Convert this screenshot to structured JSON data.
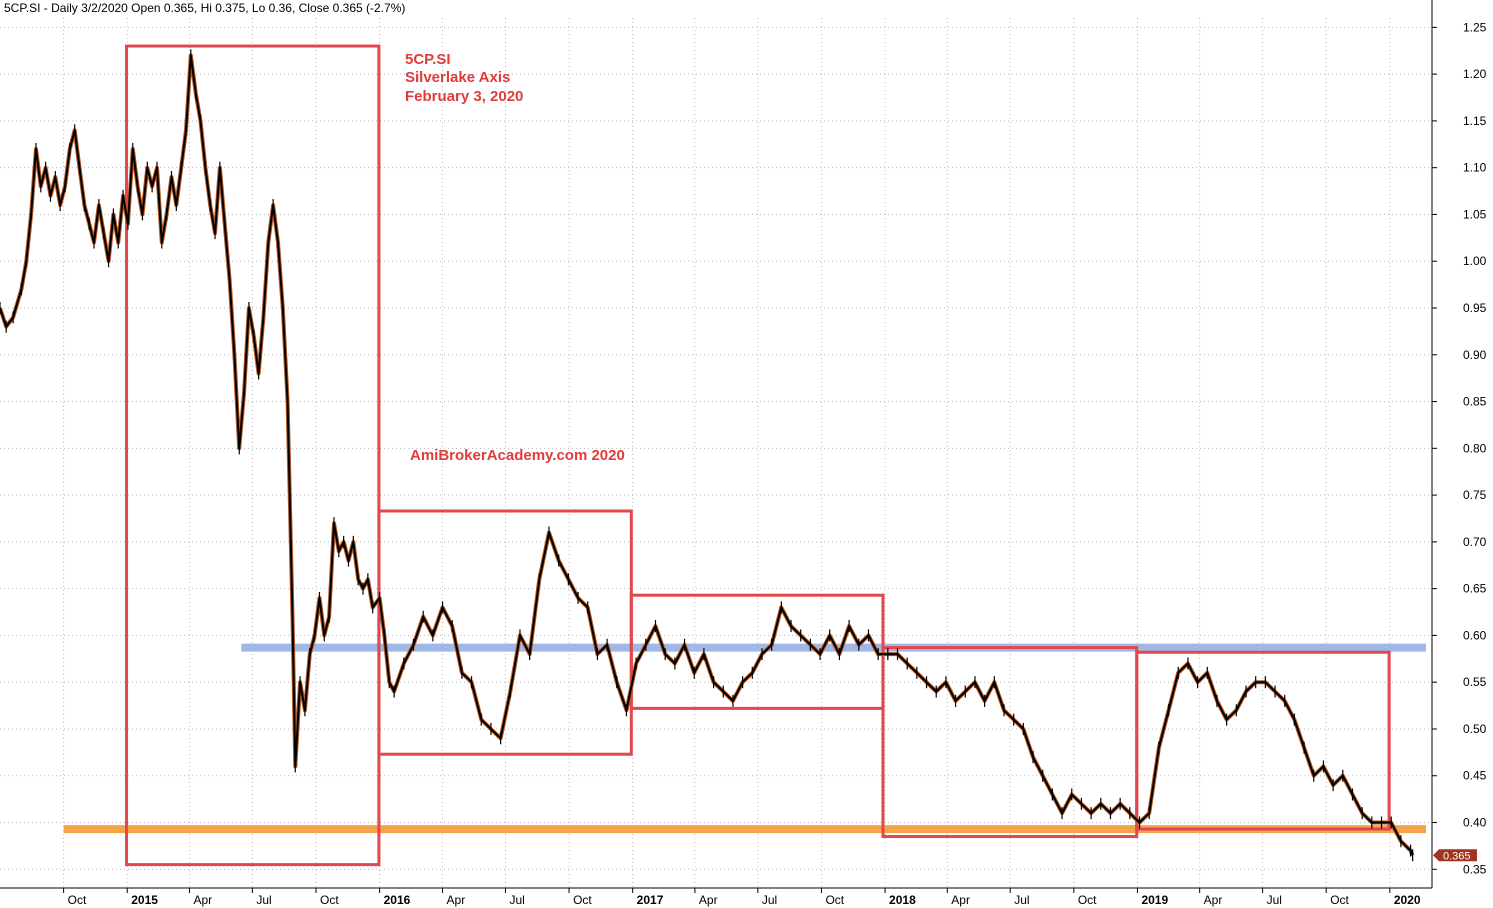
{
  "header": {
    "symbol": "5CP.SI",
    "period": "Daily",
    "date": "3/2/2020",
    "info_text": "5CP.SI - Daily 3/2/2020 Open 0.365, Hi 0.375, Lo 0.36, Close 0.365 (-2.7%)"
  },
  "annotations": {
    "ticker": "5CP.SI",
    "company": "Silverlake Axis",
    "date": "February 3, 2020",
    "watermark": "AmiBrokerAcademy.com  2020"
  },
  "colors": {
    "background": "#ffffff",
    "grid": "#b8b8b8",
    "price_line": "#000000",
    "candle_accent": "#b5541e",
    "box": "#e2474c",
    "box_dark": "#c0204a",
    "resistance": "#9fb8e6",
    "support": "#f5a347",
    "last_badge": "#a0341e",
    "text": "#000000",
    "annotation_text": "#e03c3c"
  },
  "chart_data": {
    "type": "line",
    "title": "",
    "xlabel": "",
    "ylabel": "",
    "ylim": [
      0.33,
      1.26
    ],
    "xlim": [
      "2014-07-01",
      "2020-03-02"
    ],
    "y_ticks": [
      "1.25",
      "1.20",
      "1.15",
      "1.10",
      "1.05",
      "1.00",
      "0.95",
      "0.90",
      "0.85",
      "0.80",
      "0.75",
      "0.70",
      "0.65",
      "0.60",
      "0.55",
      "0.50",
      "0.45",
      "0.40",
      "0.35"
    ],
    "y_tick_values": [
      1.25,
      1.2,
      1.15,
      1.1,
      1.05,
      1.0,
      0.95,
      0.9,
      0.85,
      0.8,
      0.75,
      0.7,
      0.65,
      0.6,
      0.55,
      0.5,
      0.45,
      0.4,
      0.35
    ],
    "x_ticks": [
      {
        "label": "Oct",
        "date": "2014-10-01",
        "bold": false
      },
      {
        "label": "2015",
        "date": "2015-01-01",
        "bold": true
      },
      {
        "label": "Apr",
        "date": "2015-04-01",
        "bold": false
      },
      {
        "label": "Jul",
        "date": "2015-07-01",
        "bold": false
      },
      {
        "label": "Oct",
        "date": "2015-10-01",
        "bold": false
      },
      {
        "label": "2016",
        "date": "2016-01-01",
        "bold": true
      },
      {
        "label": "Apr",
        "date": "2016-04-01",
        "bold": false
      },
      {
        "label": "Jul",
        "date": "2016-07-01",
        "bold": false
      },
      {
        "label": "Oct",
        "date": "2016-10-01",
        "bold": false
      },
      {
        "label": "2017",
        "date": "2017-01-01",
        "bold": true
      },
      {
        "label": "Apr",
        "date": "2017-04-01",
        "bold": false
      },
      {
        "label": "Jul",
        "date": "2017-07-01",
        "bold": false
      },
      {
        "label": "Oct",
        "date": "2017-10-01",
        "bold": false
      },
      {
        "label": "2018",
        "date": "2018-01-01",
        "bold": true
      },
      {
        "label": "Apr",
        "date": "2018-04-01",
        "bold": false
      },
      {
        "label": "Jul",
        "date": "2018-07-01",
        "bold": false
      },
      {
        "label": "Oct",
        "date": "2018-10-01",
        "bold": false
      },
      {
        "label": "2019",
        "date": "2019-01-01",
        "bold": true
      },
      {
        "label": "Apr",
        "date": "2019-04-01",
        "bold": false
      },
      {
        "label": "Jul",
        "date": "2019-07-01",
        "bold": false
      },
      {
        "label": "Oct",
        "date": "2019-10-01",
        "bold": false
      },
      {
        "label": "2020",
        "date": "2020-01-01",
        "bold": true
      }
    ],
    "grid": true,
    "last_value": "0.365",
    "series": [
      {
        "values": [
          [
            "2014-07-01",
            0.95
          ],
          [
            "2014-07-10",
            0.93
          ],
          [
            "2014-07-20",
            0.94
          ],
          [
            "2014-08-01",
            0.97
          ],
          [
            "2014-08-08",
            1.0
          ],
          [
            "2014-08-15",
            1.05
          ],
          [
            "2014-08-22",
            1.12
          ],
          [
            "2014-08-29",
            1.08
          ],
          [
            "2014-09-05",
            1.1
          ],
          [
            "2014-09-12",
            1.07
          ],
          [
            "2014-09-19",
            1.09
          ],
          [
            "2014-09-26",
            1.06
          ],
          [
            "2014-10-03",
            1.08
          ],
          [
            "2014-10-10",
            1.12
          ],
          [
            "2014-10-17",
            1.14
          ],
          [
            "2014-10-24",
            1.1
          ],
          [
            "2014-10-31",
            1.06
          ],
          [
            "2014-11-07",
            1.04
          ],
          [
            "2014-11-14",
            1.02
          ],
          [
            "2014-11-21",
            1.06
          ],
          [
            "2014-11-28",
            1.03
          ],
          [
            "2014-12-05",
            1.0
          ],
          [
            "2014-12-12",
            1.05
          ],
          [
            "2014-12-19",
            1.02
          ],
          [
            "2014-12-26",
            1.07
          ],
          [
            "2015-01-02",
            1.04
          ],
          [
            "2015-01-09",
            1.12
          ],
          [
            "2015-01-16",
            1.08
          ],
          [
            "2015-01-23",
            1.05
          ],
          [
            "2015-01-30",
            1.1
          ],
          [
            "2015-02-06",
            1.08
          ],
          [
            "2015-02-13",
            1.1
          ],
          [
            "2015-02-20",
            1.02
          ],
          [
            "2015-02-27",
            1.05
          ],
          [
            "2015-03-06",
            1.09
          ],
          [
            "2015-03-13",
            1.06
          ],
          [
            "2015-03-20",
            1.1
          ],
          [
            "2015-03-27",
            1.14
          ],
          [
            "2015-04-03",
            1.22
          ],
          [
            "2015-04-10",
            1.18
          ],
          [
            "2015-04-17",
            1.15
          ],
          [
            "2015-04-24",
            1.1
          ],
          [
            "2015-05-01",
            1.06
          ],
          [
            "2015-05-08",
            1.03
          ],
          [
            "2015-05-15",
            1.1
          ],
          [
            "2015-05-22",
            1.04
          ],
          [
            "2015-05-29",
            0.98
          ],
          [
            "2015-06-05",
            0.9
          ],
          [
            "2015-06-12",
            0.8
          ],
          [
            "2015-06-19",
            0.86
          ],
          [
            "2015-06-26",
            0.95
          ],
          [
            "2015-07-03",
            0.92
          ],
          [
            "2015-07-10",
            0.88
          ],
          [
            "2015-07-17",
            0.94
          ],
          [
            "2015-07-24",
            1.02
          ],
          [
            "2015-07-31",
            1.06
          ],
          [
            "2015-08-07",
            1.02
          ],
          [
            "2015-08-14",
            0.95
          ],
          [
            "2015-08-21",
            0.85
          ],
          [
            "2015-08-28",
            0.62
          ],
          [
            "2015-09-01",
            0.46
          ],
          [
            "2015-09-08",
            0.55
          ],
          [
            "2015-09-15",
            0.52
          ],
          [
            "2015-09-22",
            0.58
          ],
          [
            "2015-09-29",
            0.6
          ],
          [
            "2015-10-06",
            0.64
          ],
          [
            "2015-10-13",
            0.6
          ],
          [
            "2015-10-20",
            0.62
          ],
          [
            "2015-10-27",
            0.72
          ],
          [
            "2015-11-03",
            0.69
          ],
          [
            "2015-11-10",
            0.7
          ],
          [
            "2015-11-17",
            0.68
          ],
          [
            "2015-11-24",
            0.7
          ],
          [
            "2015-12-01",
            0.66
          ],
          [
            "2015-12-08",
            0.65
          ],
          [
            "2015-12-15",
            0.66
          ],
          [
            "2015-12-22",
            0.63
          ],
          [
            "2016-01-01",
            0.64
          ],
          [
            "2016-01-08",
            0.6
          ],
          [
            "2016-01-15",
            0.55
          ],
          [
            "2016-01-22",
            0.54
          ],
          [
            "2016-02-05",
            0.57
          ],
          [
            "2016-02-19",
            0.59
          ],
          [
            "2016-03-04",
            0.62
          ],
          [
            "2016-03-18",
            0.6
          ],
          [
            "2016-04-01",
            0.63
          ],
          [
            "2016-04-15",
            0.61
          ],
          [
            "2016-04-29",
            0.56
          ],
          [
            "2016-05-13",
            0.55
          ],
          [
            "2016-05-27",
            0.51
          ],
          [
            "2016-06-10",
            0.5
          ],
          [
            "2016-06-24",
            0.49
          ],
          [
            "2016-07-08",
            0.54
          ],
          [
            "2016-07-22",
            0.6
          ],
          [
            "2016-08-05",
            0.58
          ],
          [
            "2016-08-19",
            0.66
          ],
          [
            "2016-09-02",
            0.71
          ],
          [
            "2016-09-16",
            0.68
          ],
          [
            "2016-09-30",
            0.66
          ],
          [
            "2016-10-14",
            0.64
          ],
          [
            "2016-10-28",
            0.63
          ],
          [
            "2016-11-11",
            0.58
          ],
          [
            "2016-11-25",
            0.59
          ],
          [
            "2016-12-09",
            0.55
          ],
          [
            "2016-12-23",
            0.52
          ],
          [
            "2017-01-06",
            0.57
          ],
          [
            "2017-01-20",
            0.59
          ],
          [
            "2017-02-03",
            0.61
          ],
          [
            "2017-02-17",
            0.58
          ],
          [
            "2017-03-03",
            0.57
          ],
          [
            "2017-03-17",
            0.59
          ],
          [
            "2017-03-31",
            0.56
          ],
          [
            "2017-04-14",
            0.58
          ],
          [
            "2017-04-28",
            0.55
          ],
          [
            "2017-05-12",
            0.54
          ],
          [
            "2017-05-26",
            0.53
          ],
          [
            "2017-06-09",
            0.55
          ],
          [
            "2017-06-23",
            0.56
          ],
          [
            "2017-07-07",
            0.58
          ],
          [
            "2017-07-21",
            0.59
          ],
          [
            "2017-08-04",
            0.63
          ],
          [
            "2017-08-18",
            0.61
          ],
          [
            "2017-09-01",
            0.6
          ],
          [
            "2017-09-15",
            0.59
          ],
          [
            "2017-09-29",
            0.58
          ],
          [
            "2017-10-13",
            0.6
          ],
          [
            "2017-10-27",
            0.58
          ],
          [
            "2017-11-10",
            0.61
          ],
          [
            "2017-11-24",
            0.59
          ],
          [
            "2017-12-08",
            0.6
          ],
          [
            "2017-12-22",
            0.58
          ],
          [
            "2018-01-05",
            0.58
          ],
          [
            "2018-01-19",
            0.58
          ],
          [
            "2018-02-02",
            0.57
          ],
          [
            "2018-02-16",
            0.56
          ],
          [
            "2018-03-02",
            0.55
          ],
          [
            "2018-03-16",
            0.54
          ],
          [
            "2018-03-30",
            0.55
          ],
          [
            "2018-04-13",
            0.53
          ],
          [
            "2018-04-27",
            0.54
          ],
          [
            "2018-05-11",
            0.55
          ],
          [
            "2018-05-25",
            0.53
          ],
          [
            "2018-06-08",
            0.55
          ],
          [
            "2018-06-22",
            0.52
          ],
          [
            "2018-07-06",
            0.51
          ],
          [
            "2018-07-20",
            0.5
          ],
          [
            "2018-08-03",
            0.47
          ],
          [
            "2018-08-17",
            0.45
          ],
          [
            "2018-08-31",
            0.43
          ],
          [
            "2018-09-14",
            0.41
          ],
          [
            "2018-09-28",
            0.43
          ],
          [
            "2018-10-12",
            0.42
          ],
          [
            "2018-10-26",
            0.41
          ],
          [
            "2018-11-09",
            0.42
          ],
          [
            "2018-11-23",
            0.41
          ],
          [
            "2018-12-07",
            0.42
          ],
          [
            "2018-12-21",
            0.41
          ],
          [
            "2019-01-04",
            0.4
          ],
          [
            "2019-01-18",
            0.41
          ],
          [
            "2019-02-01",
            0.48
          ],
          [
            "2019-02-15",
            0.52
          ],
          [
            "2019-03-01",
            0.56
          ],
          [
            "2019-03-15",
            0.57
          ],
          [
            "2019-03-29",
            0.55
          ],
          [
            "2019-04-12",
            0.56
          ],
          [
            "2019-04-26",
            0.53
          ],
          [
            "2019-05-10",
            0.51
          ],
          [
            "2019-05-24",
            0.52
          ],
          [
            "2019-06-07",
            0.54
          ],
          [
            "2019-06-21",
            0.55
          ],
          [
            "2019-07-05",
            0.55
          ],
          [
            "2019-07-19",
            0.54
          ],
          [
            "2019-08-02",
            0.53
          ],
          [
            "2019-08-16",
            0.51
          ],
          [
            "2019-08-30",
            0.48
          ],
          [
            "2019-09-13",
            0.45
          ],
          [
            "2019-09-27",
            0.46
          ],
          [
            "2019-10-11",
            0.44
          ],
          [
            "2019-10-25",
            0.45
          ],
          [
            "2019-11-08",
            0.43
          ],
          [
            "2019-11-22",
            0.41
          ],
          [
            "2019-12-06",
            0.4
          ],
          [
            "2019-12-20",
            0.4
          ],
          [
            "2020-01-03",
            0.4
          ],
          [
            "2020-01-17",
            0.38
          ],
          [
            "2020-01-31",
            0.37
          ],
          [
            "2020-02-03",
            0.365
          ]
        ]
      }
    ],
    "boxes": [
      {
        "x0": "2014-12-31",
        "x1": "2015-12-31",
        "y0": 0.355,
        "y1": 1.23,
        "color": "box"
      },
      {
        "x0": "2015-12-31",
        "x1": "2016-12-30",
        "y0": 0.473,
        "y1": 0.733,
        "color": "box"
      },
      {
        "x0": "2016-12-30",
        "x1": "2017-12-29",
        "y0": 0.522,
        "y1": 0.643,
        "color": "box"
      },
      {
        "x0": "2017-12-29",
        "x1": "2018-12-31",
        "y0": 0.385,
        "y1": 0.587,
        "color": "box"
      },
      {
        "x0": "2018-12-31",
        "x1": "2019-12-31",
        "y0": 0.393,
        "y1": 0.582,
        "color": "box"
      }
    ],
    "hlines": [
      {
        "y": 0.587,
        "x0": "2015-06-15",
        "x1": "2020-03-02",
        "color": "resistance"
      },
      {
        "y": 0.393,
        "x0": "2014-10-01",
        "x1": "2020-03-02",
        "color": "support"
      }
    ]
  }
}
